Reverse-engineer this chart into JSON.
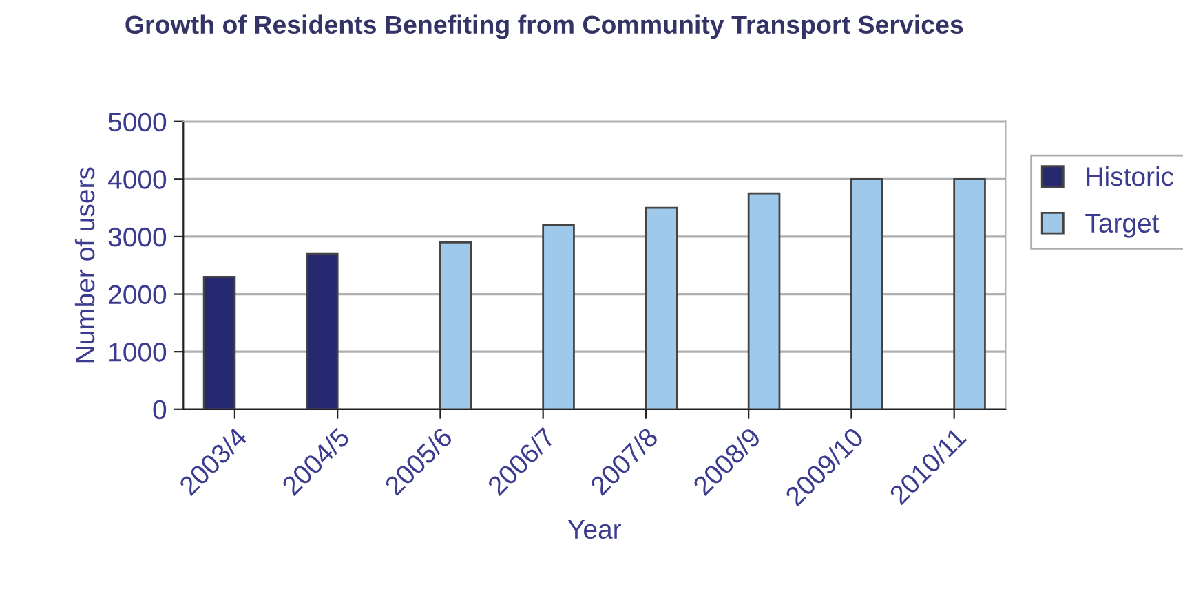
{
  "chart_data": {
    "type": "bar",
    "title": "Growth of Residents Benefiting from Community Transport Services",
    "xlabel": "Year",
    "ylabel": "Number of users",
    "categories": [
      "2003/4",
      "2004/5",
      "2005/6",
      "2006/7",
      "2007/8",
      "2008/9",
      "2009/10",
      "2010/11"
    ],
    "series": [
      {
        "name": "Historic",
        "color": "#26296f",
        "values": [
          2300,
          2700,
          null,
          null,
          null,
          null,
          null,
          null
        ]
      },
      {
        "name": "Target",
        "color": "#9fc9eb",
        "values": [
          null,
          null,
          2900,
          3200,
          3500,
          3750,
          4000,
          4000
        ]
      }
    ],
    "ylim": [
      0,
      5000
    ],
    "yticks": [
      0,
      1000,
      2000,
      3000,
      4000,
      5000
    ],
    "grid": "y",
    "legend": "right"
  }
}
